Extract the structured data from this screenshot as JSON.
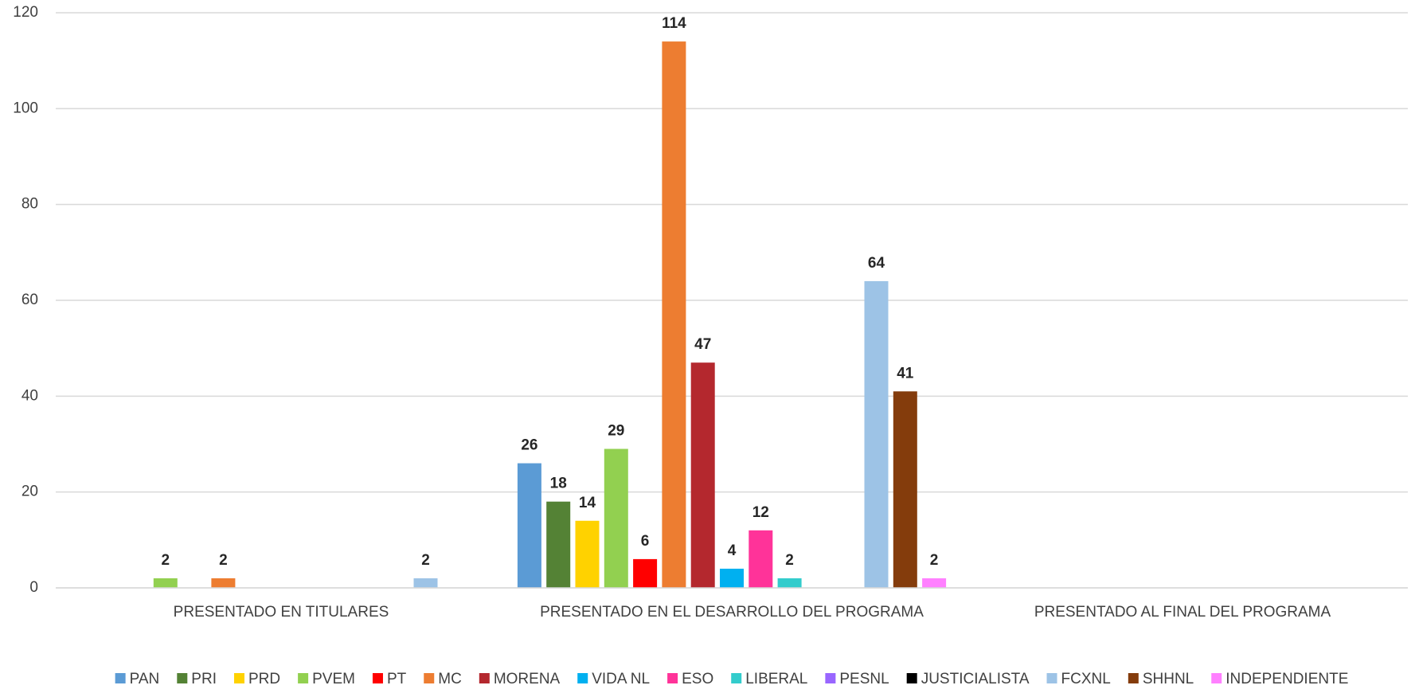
{
  "chart_data": {
    "type": "bar",
    "categories": [
      "PRESENTADO EN TITULARES",
      "PRESENTADO EN EL DESARROLLO DEL PROGRAMA",
      "PRESENTADO AL FINAL DEL PROGRAMA"
    ],
    "series": [
      {
        "name": "PAN",
        "color": "#5b9bd5",
        "values": [
          null,
          26,
          null
        ]
      },
      {
        "name": "PRI",
        "color": "#548235",
        "values": [
          null,
          18,
          null
        ]
      },
      {
        "name": "PRD",
        "color": "#ffd200",
        "values": [
          null,
          14,
          null
        ]
      },
      {
        "name": "PVEM",
        "color": "#92d050",
        "values": [
          2,
          29,
          null
        ]
      },
      {
        "name": "PT",
        "color": "#ff0000",
        "values": [
          null,
          6,
          null
        ]
      },
      {
        "name": "MC",
        "color": "#ed7d31",
        "values": [
          2,
          114,
          null
        ]
      },
      {
        "name": "MORENA",
        "color": "#b4282e",
        "values": [
          null,
          47,
          null
        ]
      },
      {
        "name": "VIDA NL",
        "color": "#00b0f0",
        "values": [
          null,
          4,
          null
        ]
      },
      {
        "name": "ESO",
        "color": "#ff3399",
        "values": [
          null,
          12,
          null
        ]
      },
      {
        "name": "LIBERAL",
        "color": "#33cccc",
        "values": [
          null,
          2,
          null
        ]
      },
      {
        "name": "PESNL",
        "color": "#9966ff",
        "values": [
          null,
          null,
          null
        ]
      },
      {
        "name": "JUSTICIALISTA",
        "color": "#000000",
        "values": [
          null,
          null,
          null
        ]
      },
      {
        "name": "FCXNL",
        "color": "#9dc3e6",
        "values": [
          2,
          64,
          null
        ]
      },
      {
        "name": "SHHNL",
        "color": "#843c0c",
        "values": [
          null,
          41,
          null
        ]
      },
      {
        "name": "INDEPENDIENTE",
        "color": "#ff80ff",
        "values": [
          null,
          2,
          null
        ]
      }
    ],
    "ylim": [
      0,
      120
    ],
    "yticks": [
      0,
      20,
      40,
      60,
      80,
      100,
      120
    ],
    "grid": true,
    "legend": "bottom"
  }
}
